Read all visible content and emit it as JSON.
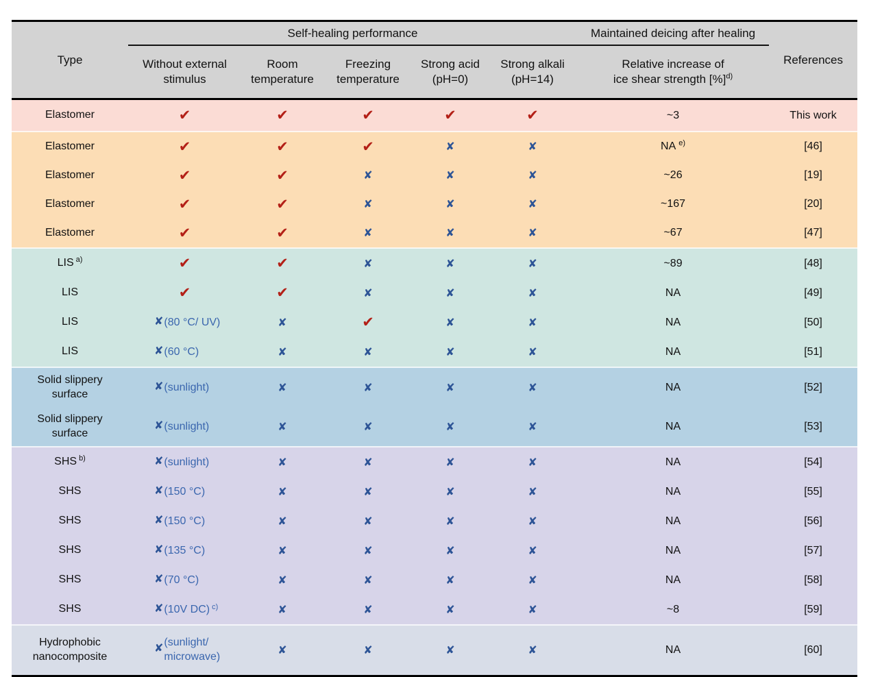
{
  "table": {
    "header": {
      "type_label": "Type",
      "group_self_healing": "Self-healing performance",
      "group_deicing": "Maintained deicing after healing",
      "references_label": "References",
      "subcols": [
        {
          "lines": [
            "Without external",
            "stimulus"
          ],
          "sup": ""
        },
        {
          "lines": [
            "Room",
            "temperature"
          ],
          "sup": ""
        },
        {
          "lines": [
            "Freezing",
            "temperature"
          ],
          "sup": ""
        },
        {
          "lines": [
            "Strong acid",
            "(pH=0)"
          ],
          "sup": ""
        },
        {
          "lines": [
            "Strong alkali",
            "(pH=14)"
          ],
          "sup": ""
        },
        {
          "lines": [
            "Relative increase of",
            "ice shear strength [%]"
          ],
          "sup": "d)"
        }
      ]
    },
    "marks": {
      "check": {
        "glyph": "✔",
        "color": "#b32017"
      },
      "cross": {
        "glyph": "✘",
        "color": "#2d5496"
      }
    },
    "note_color": "#3a66ae",
    "section_colors": {
      "elastomer_this": "#fbdcd5",
      "elastomer": "#fcddb5",
      "lis": "#cfe6e1",
      "slippery": "#b4d1e3",
      "shs": "#d7d4e9",
      "nano": "#d8dde8"
    },
    "rows": [
      {
        "type": "Elastomer",
        "type_sup": "",
        "section": "elastomer_this",
        "note": "",
        "note_sup": "",
        "marks": [
          "check",
          "check",
          "check",
          "check",
          "check"
        ],
        "increase": "~3",
        "increase_sup": "",
        "reference": "This work"
      },
      {
        "type": "Elastomer",
        "type_sup": "",
        "section": "elastomer",
        "note": "",
        "note_sup": "",
        "marks": [
          "check",
          "check",
          "check",
          "cross",
          "cross"
        ],
        "increase": "NA",
        "increase_sup": "e)",
        "reference": "[46]"
      },
      {
        "type": "Elastomer",
        "type_sup": "",
        "section": "elastomer",
        "note": "",
        "note_sup": "",
        "marks": [
          "check",
          "check",
          "cross",
          "cross",
          "cross"
        ],
        "increase": "~26",
        "increase_sup": "",
        "reference": "[19]"
      },
      {
        "type": "Elastomer",
        "type_sup": "",
        "section": "elastomer",
        "note": "",
        "note_sup": "",
        "marks": [
          "check",
          "check",
          "cross",
          "cross",
          "cross"
        ],
        "increase": "~167",
        "increase_sup": "",
        "reference": "[20]"
      },
      {
        "type": "Elastomer",
        "type_sup": "",
        "section": "elastomer",
        "note": "",
        "note_sup": "",
        "marks": [
          "check",
          "check",
          "cross",
          "cross",
          "cross"
        ],
        "increase": "~67",
        "increase_sup": "",
        "reference": "[47]"
      },
      {
        "type": "LIS",
        "type_sup": "a)",
        "section": "lis",
        "note": "",
        "note_sup": "",
        "marks": [
          "check",
          "check",
          "cross",
          "cross",
          "cross"
        ],
        "increase": "~89",
        "increase_sup": "",
        "reference": "[48]"
      },
      {
        "type": "LIS",
        "type_sup": "",
        "section": "lis",
        "note": "",
        "note_sup": "",
        "marks": [
          "check",
          "check",
          "cross",
          "cross",
          "cross"
        ],
        "increase": "NA",
        "increase_sup": "",
        "reference": "[49]"
      },
      {
        "type": "LIS",
        "type_sup": "",
        "section": "lis",
        "note": "(80 °C/ UV)",
        "note_sup": "",
        "marks": [
          "cross",
          "cross",
          "check",
          "cross",
          "cross"
        ],
        "increase": "NA",
        "increase_sup": "",
        "reference": "[50]"
      },
      {
        "type": "LIS",
        "type_sup": "",
        "section": "lis",
        "note": "(60 °C)",
        "note_sup": "",
        "marks": [
          "cross",
          "cross",
          "cross",
          "cross",
          "cross"
        ],
        "increase": "NA",
        "increase_sup": "",
        "reference": "[51]"
      },
      {
        "type": "Solid slippery\nsurface",
        "type_sup": "",
        "section": "slippery",
        "note": "(sunlight)",
        "note_sup": "",
        "marks": [
          "cross",
          "cross",
          "cross",
          "cross",
          "cross"
        ],
        "increase": "NA",
        "increase_sup": "",
        "reference": "[52]"
      },
      {
        "type": "Solid slippery\nsurface",
        "type_sup": "",
        "section": "slippery",
        "note": "(sunlight)",
        "note_sup": "",
        "marks": [
          "cross",
          "cross",
          "cross",
          "cross",
          "cross"
        ],
        "increase": "NA",
        "increase_sup": "",
        "reference": "[53]"
      },
      {
        "type": "SHS",
        "type_sup": "b)",
        "section": "shs",
        "note": "(sunlight)",
        "note_sup": "",
        "marks": [
          "cross",
          "cross",
          "cross",
          "cross",
          "cross"
        ],
        "increase": "NA",
        "increase_sup": "",
        "reference": "[54]"
      },
      {
        "type": "SHS",
        "type_sup": "",
        "section": "shs",
        "note": "(150 °C)",
        "note_sup": "",
        "marks": [
          "cross",
          "cross",
          "cross",
          "cross",
          "cross"
        ],
        "increase": "NA",
        "increase_sup": "",
        "reference": "[55]"
      },
      {
        "type": "SHS",
        "type_sup": "",
        "section": "shs",
        "note": "(150 °C)",
        "note_sup": "",
        "marks": [
          "cross",
          "cross",
          "cross",
          "cross",
          "cross"
        ],
        "increase": "NA",
        "increase_sup": "",
        "reference": "[56]"
      },
      {
        "type": "SHS",
        "type_sup": "",
        "section": "shs",
        "note": "(135 °C)",
        "note_sup": "",
        "marks": [
          "cross",
          "cross",
          "cross",
          "cross",
          "cross"
        ],
        "increase": "NA",
        "increase_sup": "",
        "reference": "[57]"
      },
      {
        "type": "SHS",
        "type_sup": "",
        "section": "shs",
        "note": "(70 °C)",
        "note_sup": "",
        "marks": [
          "cross",
          "cross",
          "cross",
          "cross",
          "cross"
        ],
        "increase": "NA",
        "increase_sup": "",
        "reference": "[58]"
      },
      {
        "type": "SHS",
        "type_sup": "",
        "section": "shs",
        "note": "(10V DC)",
        "note_sup": "c)",
        "marks": [
          "cross",
          "cross",
          "cross",
          "cross",
          "cross"
        ],
        "increase": "~8",
        "increase_sup": "",
        "reference": "[59]"
      },
      {
        "type": "Hydrophobic\nnanocomposite",
        "type_sup": "",
        "section": "nano",
        "note": "(sunlight/\nmicrowave)",
        "note_sup": "",
        "marks": [
          "cross",
          "cross",
          "cross",
          "cross",
          "cross"
        ],
        "increase": "NA",
        "increase_sup": "",
        "reference": "[60]"
      }
    ]
  }
}
